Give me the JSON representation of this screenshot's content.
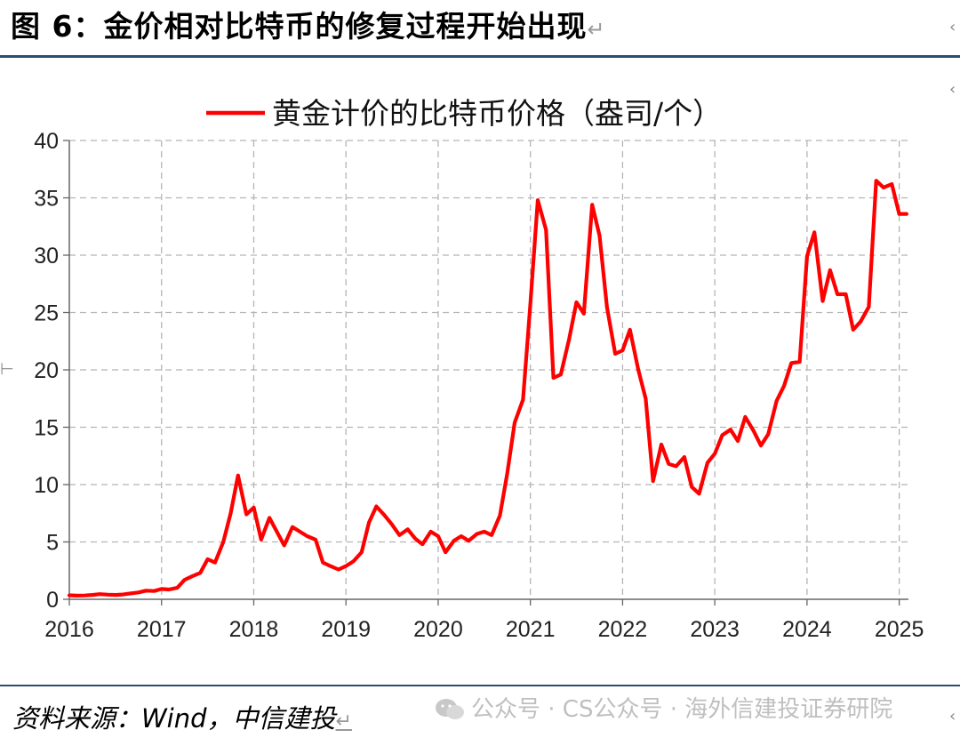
{
  "figure": {
    "title": "图 6：金价相对比特币的修复过程开始出现",
    "return_mark": "↵",
    "source_label": "资料来源：Wind，中信建投",
    "source_return_mark": "↵"
  },
  "watermark": {
    "text": "公众号 · CS公众号 · 海外信建投证券研院"
  },
  "colors": {
    "series": "#ff0000",
    "grid": "#b4b4b4",
    "rule": "#2e4d6e"
  },
  "chart_data": {
    "type": "line",
    "title": "",
    "legend": [
      "黄金计价的比特币价格（盎司/个）"
    ],
    "legend_position": "top-center",
    "xlabel": "",
    "ylabel": "",
    "xlim": [
      2016.0,
      2025.1
    ],
    "ylim": [
      0,
      40
    ],
    "x_ticks": [
      "2016",
      "2017",
      "2018",
      "2019",
      "2020",
      "2021",
      "2022",
      "2023",
      "2024",
      "2025"
    ],
    "y_ticks": [
      "0",
      "5",
      "10",
      "15",
      "20",
      "25",
      "30",
      "35",
      "40"
    ],
    "grid": "dashed",
    "series": [
      {
        "name": "黄金计价的比特币价格（盎司/个）",
        "x": [
          2016.0,
          2016.08,
          2016.17,
          2016.25,
          2016.33,
          2016.42,
          2016.5,
          2016.58,
          2016.67,
          2016.75,
          2016.83,
          2016.92,
          2017.0,
          2017.08,
          2017.17,
          2017.25,
          2017.33,
          2017.42,
          2017.5,
          2017.58,
          2017.67,
          2017.75,
          2017.83,
          2017.92,
          2018.0,
          2018.08,
          2018.17,
          2018.25,
          2018.33,
          2018.42,
          2018.5,
          2018.58,
          2018.67,
          2018.75,
          2018.83,
          2018.92,
          2019.0,
          2019.08,
          2019.17,
          2019.25,
          2019.33,
          2019.42,
          2019.5,
          2019.58,
          2019.67,
          2019.75,
          2019.83,
          2019.92,
          2020.0,
          2020.08,
          2020.17,
          2020.25,
          2020.33,
          2020.42,
          2020.5,
          2020.58,
          2020.67,
          2020.75,
          2020.83,
          2020.92,
          2021.0,
          2021.08,
          2021.17,
          2021.25,
          2021.33,
          2021.42,
          2021.5,
          2021.58,
          2021.67,
          2021.75,
          2021.83,
          2021.92,
          2022.0,
          2022.08,
          2022.17,
          2022.25,
          2022.33,
          2022.42,
          2022.5,
          2022.58,
          2022.67,
          2022.75,
          2022.83,
          2022.92,
          2023.0,
          2023.08,
          2023.17,
          2023.25,
          2023.33,
          2023.42,
          2023.5,
          2023.58,
          2023.67,
          2023.75,
          2023.83,
          2023.92,
          2024.0,
          2024.08,
          2024.17,
          2024.25,
          2024.33,
          2024.42,
          2024.5,
          2024.58,
          2024.67,
          2024.75,
          2024.83,
          2024.92,
          2025.0,
          2025.08
        ],
        "values": [
          0.35,
          0.32,
          0.33,
          0.38,
          0.45,
          0.4,
          0.38,
          0.42,
          0.52,
          0.6,
          0.75,
          0.72,
          0.9,
          0.85,
          1.0,
          1.7,
          2.0,
          2.3,
          3.5,
          3.2,
          5.0,
          7.5,
          10.8,
          7.4,
          8.0,
          5.2,
          7.1,
          5.9,
          4.7,
          6.3,
          5.9,
          5.5,
          5.2,
          3.2,
          2.9,
          2.6,
          2.9,
          3.3,
          4.1,
          6.7,
          8.1,
          7.3,
          6.5,
          5.6,
          6.1,
          5.3,
          4.8,
          5.9,
          5.5,
          4.1,
          5.1,
          5.5,
          5.1,
          5.7,
          5.9,
          5.6,
          7.3,
          11.0,
          15.4,
          17.4,
          25.8,
          34.8,
          32.2,
          19.3,
          19.6,
          22.7,
          25.9,
          24.9,
          34.4,
          31.7,
          25.5,
          21.4,
          21.7,
          23.5,
          20.0,
          17.5,
          10.3,
          13.5,
          11.8,
          11.6,
          12.4,
          9.8,
          9.2,
          11.9,
          12.7,
          14.3,
          14.8,
          13.8,
          15.9,
          14.7,
          13.4,
          14.4,
          17.3,
          18.6,
          20.6,
          20.7,
          29.9,
          32.0,
          26.0,
          28.7,
          26.6,
          26.6,
          23.5,
          24.2,
          25.5,
          36.5,
          35.9,
          36.2,
          33.6,
          33.6
        ]
      }
    ]
  }
}
